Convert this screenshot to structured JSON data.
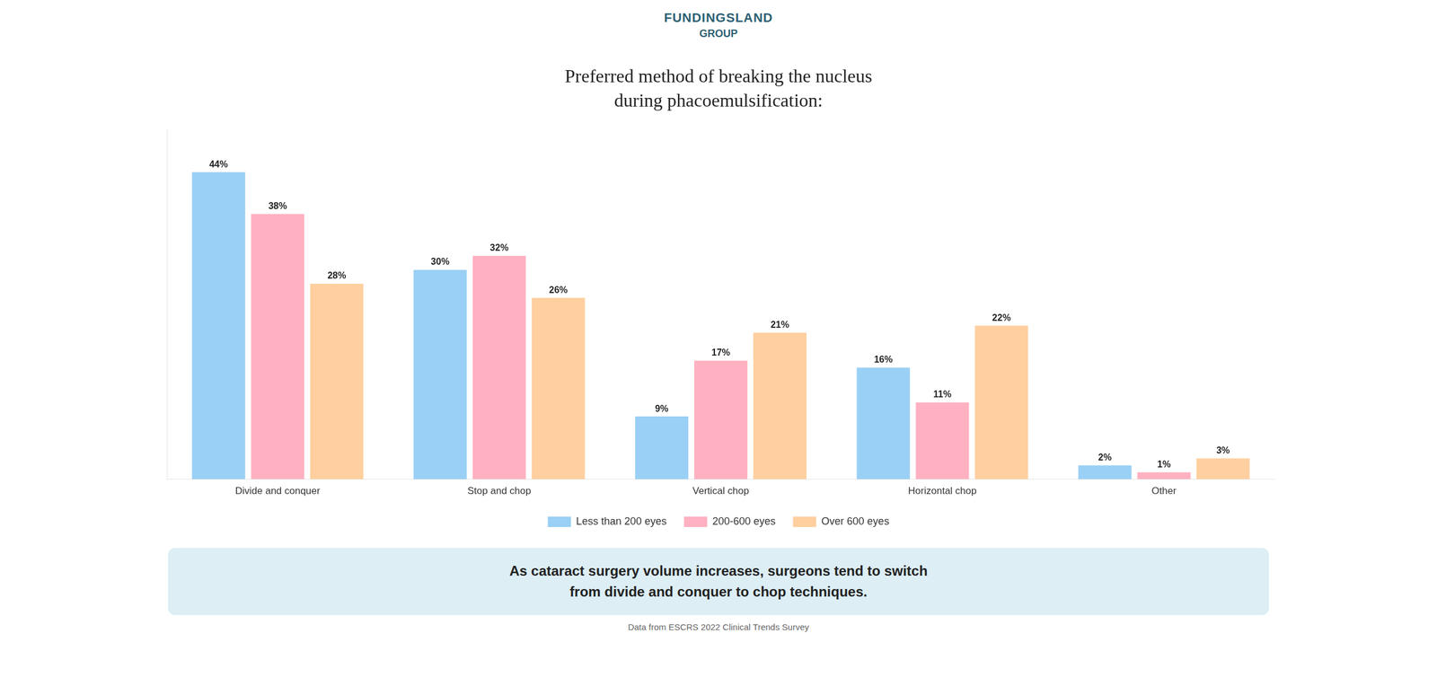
{
  "chart_data": {
    "type": "bar",
    "title": "Preferred method of breaking the nucleus",
    "subtitle": "during phacoemulsification:",
    "categories": [
      "Divide and conquer",
      "Stop and chop",
      "Vertical chop",
      "Horizontal chop",
      "Other"
    ],
    "series": [
      {
        "name": "Less than 200 eyes",
        "values": [
          44,
          30,
          9,
          16,
          2
        ],
        "value_labels": [
          "44%",
          "30%",
          "9%",
          "16%",
          "2%"
        ]
      },
      {
        "name": "200-600 eyes",
        "values": [
          38,
          32,
          17,
          11,
          1
        ],
        "value_labels": [
          "38%",
          "32%",
          "17%",
          "11%",
          "1%"
        ]
      },
      {
        "name": "Over 600 eyes",
        "values": [
          28,
          26,
          21,
          22,
          3
        ],
        "value_labels": [
          "28%",
          "26%",
          "21%",
          "22%",
          "3%"
        ]
      }
    ],
    "ylim": [
      0,
      50
    ],
    "grid": false,
    "legend": "bottom",
    "data_labels": true,
    "tick_labels": "x",
    "annotations": [
      "FUNDINGSLAND",
      "GROUP",
      "As cataract surgery volume increases, surgeons tend to switch\nfrom divide and conquer to chop techniques.",
      "Data from ESCRS 2022 Clinical Trends Survey"
    ]
  }
}
